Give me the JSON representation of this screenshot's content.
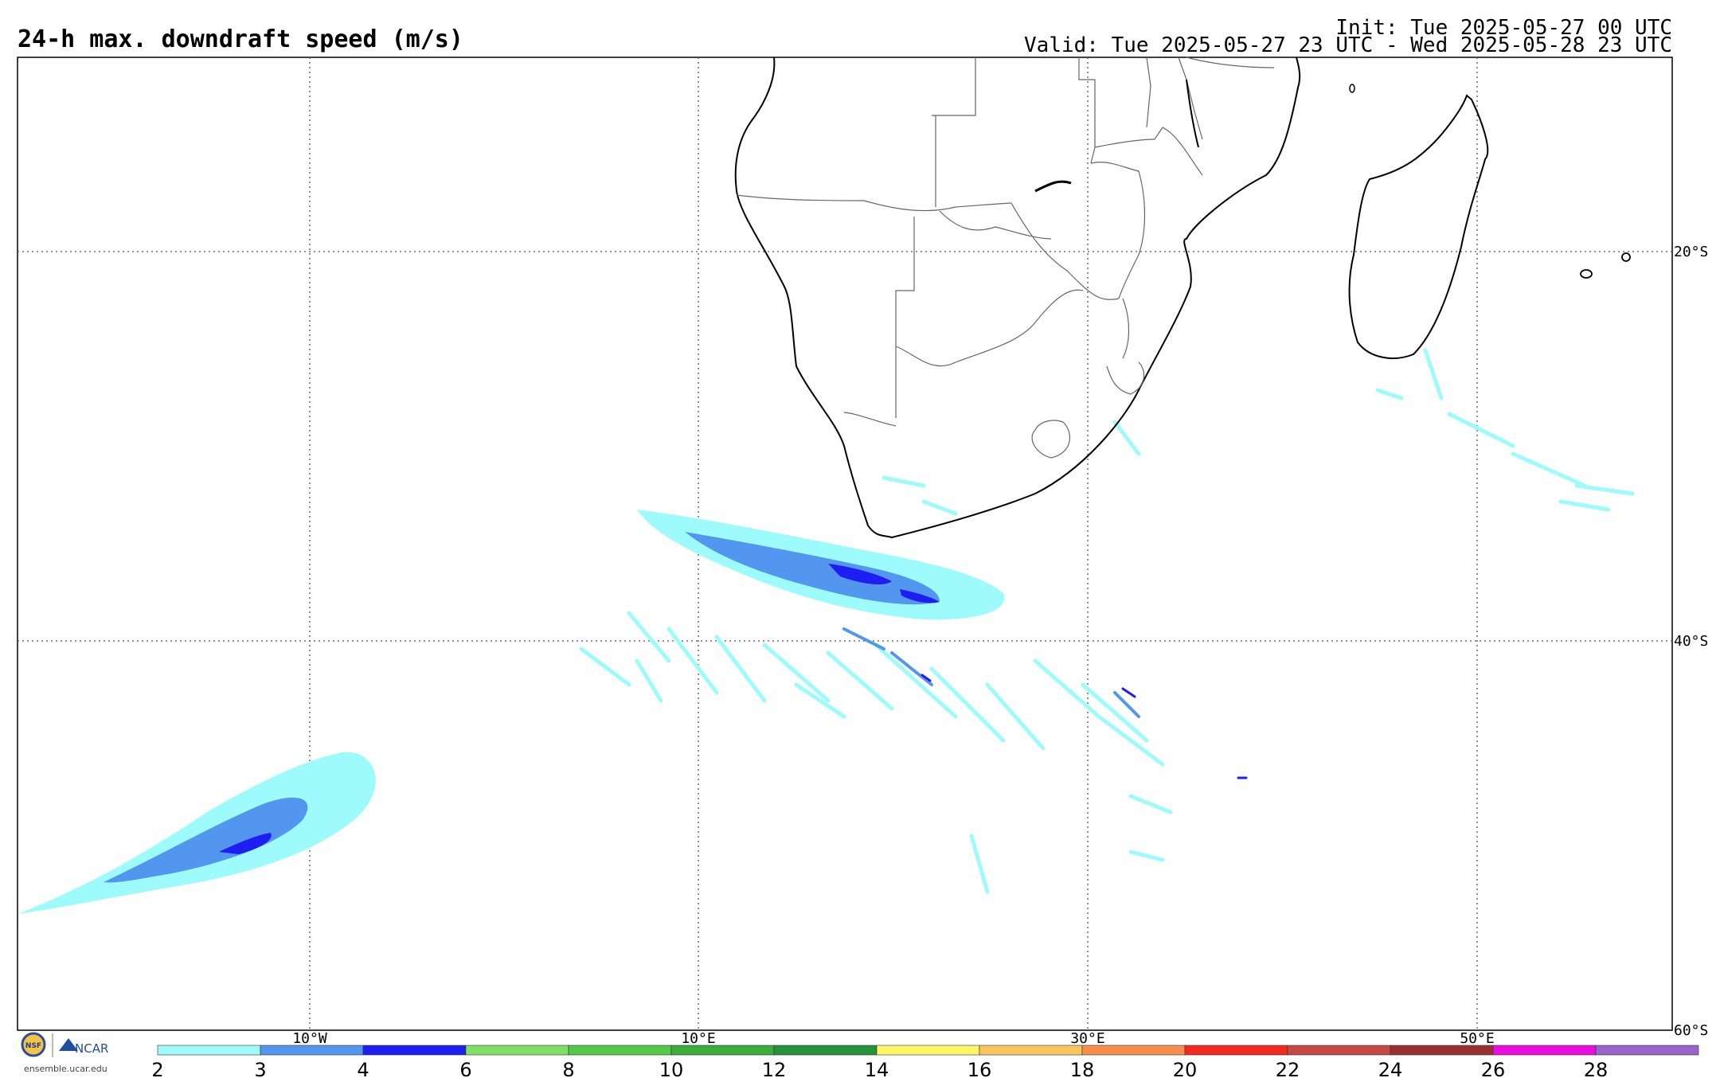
{
  "header": {
    "title": "24-h max. downdraft speed (m/s)",
    "init": "Init: Tue 2025-05-27 00 UTC",
    "valid": "Valid: Tue 2025-05-27 23 UTC - Wed 2025-05-28 23 UTC"
  },
  "map": {
    "longitude_labels": [
      "10°W",
      "10°E",
      "30°E",
      "50°E"
    ],
    "longitude_values": [
      -10,
      10,
      30,
      50
    ],
    "latitude_labels": [
      "20°S",
      "40°S",
      "60°S"
    ],
    "latitude_values": [
      -20,
      -40,
      -60
    ],
    "extent": {
      "lon_min": -25,
      "lon_max": 60,
      "lat_min": -60,
      "lat_max": -10
    },
    "gridlines": true,
    "features": [
      "Southern Africa",
      "Madagascar",
      "country borders",
      "coastlines"
    ]
  },
  "colorbar": {
    "ticks": [
      "2",
      "3",
      "4",
      "6",
      "8",
      "10",
      "12",
      "14",
      "16",
      "18",
      "20",
      "22",
      "24",
      "26",
      "28"
    ],
    "colors": [
      "#9efbfc",
      "#5396f0",
      "#1f1ef2",
      "#80e063",
      "#54c847",
      "#3aad3b",
      "#24933a",
      "#fdf766",
      "#fbc55d",
      "#f98d4e",
      "#f32a22",
      "#c84843",
      "#9a3030",
      "#e80ede",
      "#9b62cc"
    ]
  },
  "footer": {
    "org_logo": "NCAR",
    "seal": "NSF",
    "site": "ensemble.ucar.edu"
  }
}
